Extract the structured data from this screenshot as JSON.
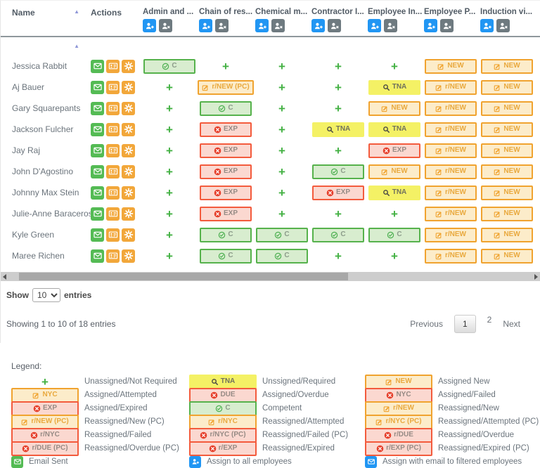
{
  "colors": {
    "accent_blue": "#2196f3",
    "green": "#4caf50",
    "orange": "#f0a32f",
    "red": "#f35b3d",
    "yellow": "#f4f165",
    "header_text": "#525c66"
  },
  "table": {
    "name_header": "Name",
    "actions_header": "Actions",
    "columns": [
      "Admin and ...",
      "Chain of res...",
      "Chemical m...",
      "Contractor I...",
      "Employee In...",
      "Employee P...",
      "Induction vi..."
    ],
    "rows": [
      {
        "name": "Jessica Rabbit",
        "cells": [
          "C",
          "+",
          "+",
          "+",
          "+",
          "NEW",
          "NEW"
        ]
      },
      {
        "name": "Aj Bauer",
        "cells": [
          "+",
          "r/NEW (PC)",
          "+",
          "+",
          "TNA",
          "r/NEW",
          "NEW"
        ]
      },
      {
        "name": "Gary Squarepants",
        "cells": [
          "+",
          "C",
          "+",
          "+",
          "NEW",
          "r/NEW",
          "NEW"
        ]
      },
      {
        "name": "Jackson Fulcher",
        "cells": [
          "+",
          "EXP",
          "+",
          "TNA",
          "TNA",
          "r/NEW",
          "NEW"
        ]
      },
      {
        "name": "Jay Raj",
        "cells": [
          "+",
          "EXP",
          "+",
          "+",
          "EXP",
          "r/NEW",
          "NEW"
        ]
      },
      {
        "name": "John D'Agostino",
        "cells": [
          "+",
          "EXP",
          "+",
          "C",
          "NEW",
          "r/NEW",
          "NEW"
        ]
      },
      {
        "name": "Johnny Max Stein",
        "cells": [
          "+",
          "EXP",
          "+",
          "EXP",
          "TNA",
          "r/NEW",
          "NEW"
        ]
      },
      {
        "name": "Julie-Anne Baraceros",
        "cells": [
          "+",
          "EXP",
          "+",
          "+",
          "+",
          "r/NEW",
          "NEW"
        ]
      },
      {
        "name": "Kyle Green",
        "cells": [
          "+",
          "C",
          "C",
          "C",
          "C",
          "r/NEW",
          "NEW"
        ]
      },
      {
        "name": "Maree Richen",
        "cells": [
          "+",
          "C",
          "C",
          "+",
          "+",
          "r/NEW",
          "NEW"
        ]
      }
    ]
  },
  "badge_types": {
    "+": {
      "style": "plus"
    },
    "C": {
      "style": "green",
      "icon": "check"
    },
    "NEW": {
      "style": "orange",
      "icon": "pencil"
    },
    "r/NEW": {
      "style": "orange",
      "icon": "pencil"
    },
    "r/NEW (PC)": {
      "style": "orange",
      "icon": "pencil"
    },
    "TNA": {
      "style": "yellow",
      "icon": "magnifier"
    },
    "EXP": {
      "style": "red",
      "icon": "x"
    }
  },
  "action_icons": [
    {
      "name": "email-action-button",
      "icon": "envelope",
      "bg": "bg-green"
    },
    {
      "name": "employee-card-button",
      "icon": "idcard",
      "bg": "bg-orange"
    },
    {
      "name": "settings-action-button",
      "icon": "gear",
      "bg": "bg-orange"
    }
  ],
  "header_icons": [
    {
      "name": "assign-to-all-icon",
      "icon": "person-plus",
      "bg": "bg-blue"
    },
    {
      "name": "unassign-all-icon",
      "icon": "person-x",
      "bg": "bg-gray"
    }
  ],
  "footer": {
    "show_label": "Show",
    "entries_label": "entries",
    "page_size": "10",
    "summary": "Showing 1 to 10 of 18 entries",
    "pagination": {
      "previous": "Previous",
      "pages": [
        "1",
        "2"
      ],
      "active": "1",
      "next": "Next"
    }
  },
  "legend": {
    "title": "Legend:",
    "columns": [
      [
        {
          "label": "+",
          "style": "plus",
          "text": "Unassigned/Not Required"
        },
        {
          "label": "NYC",
          "style": "orange",
          "icon": "pencil",
          "text": "Assigned/Attempted"
        },
        {
          "label": "EXP",
          "style": "red",
          "icon": "x",
          "text": "Assigned/Expired"
        },
        {
          "label": "r/NEW (PC)",
          "style": "orange",
          "icon": "pencil",
          "text": "Reassigned/New (PC)"
        },
        {
          "label": "r/NYC",
          "style": "red",
          "icon": "x",
          "text": "Reassigned/Failed"
        },
        {
          "label": "r/DUE (PC)",
          "style": "red",
          "icon": "x",
          "text": "Reassigned/Overdue (PC)"
        },
        {
          "iconbox": "envelope",
          "bg": "bg-green",
          "iconname": "email-sent-icon",
          "text": "Email Sent"
        }
      ],
      [
        {
          "label": "TNA",
          "style": "yellow",
          "icon": "magnifier",
          "text": "Unssigned/Required"
        },
        {
          "label": "DUE",
          "style": "red",
          "icon": "x",
          "text": "Assigned/Overdue"
        },
        {
          "label": "C",
          "style": "green",
          "icon": "check",
          "text": "Competent"
        },
        {
          "label": "r/NYC",
          "style": "orange",
          "icon": "pencil",
          "text": "Reassigned/Attempted"
        },
        {
          "label": "r/NYC (PC)",
          "style": "red",
          "icon": "x",
          "text": "Reassigned/Failed (PC)"
        },
        {
          "label": "r/EXP",
          "style": "red",
          "icon": "x",
          "text": "Reassigned/Expired"
        },
        {
          "iconbox": "person-plus",
          "bg": "bg-blue",
          "iconname": "assign-to-all-icon",
          "text": "Assign to all employees"
        }
      ],
      [
        {
          "label": "NEW",
          "style": "orange",
          "icon": "pencil",
          "text": "Assigned New"
        },
        {
          "label": "NYC",
          "style": "red",
          "icon": "x",
          "text": "Assigned/Failed"
        },
        {
          "label": "r/NEW",
          "style": "orange",
          "icon": "pencil",
          "text": "Reassigned/New"
        },
        {
          "label": "r/NYC (PC)",
          "style": "orange",
          "icon": "pencil",
          "text": "Reassigned/Attempted (PC)"
        },
        {
          "label": "r/DUE",
          "style": "red",
          "icon": "x",
          "text": "Reassigned/Overdue"
        },
        {
          "label": "r/EXP (PC)",
          "style": "red",
          "icon": "x",
          "text": "Reassigned/Expired (PC)"
        },
        {
          "iconbox": "envelope",
          "bg": "bg-blue",
          "iconname": "assign-with-email-icon",
          "text": "Assign with email to filtered employees"
        }
      ]
    ]
  }
}
